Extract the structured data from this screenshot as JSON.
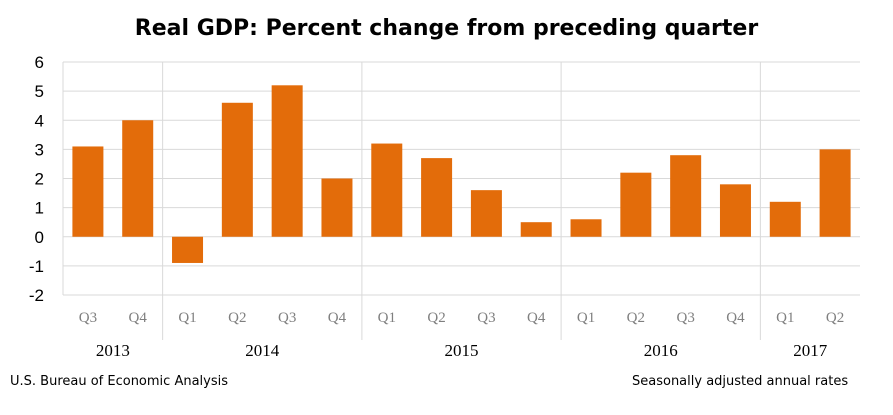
{
  "title": "Real GDP:  Percent change from preceding quarter",
  "footer": {
    "source": "U.S. Bureau of Economic Analysis",
    "note": "Seasonally adjusted annual rates"
  },
  "colors": {
    "bar": "#e36c0a",
    "grid": "#d9d9d9"
  },
  "chart_data": {
    "type": "bar",
    "categories": [
      "Q3",
      "Q4",
      "Q1",
      "Q2",
      "Q3",
      "Q4",
      "Q1",
      "Q2",
      "Q3",
      "Q4",
      "Q1",
      "Q2",
      "Q3",
      "Q4",
      "Q1",
      "Q2"
    ],
    "values": [
      3.1,
      4.0,
      -0.9,
      4.6,
      5.2,
      2.0,
      3.2,
      2.7,
      1.6,
      0.5,
      0.6,
      2.2,
      2.8,
      1.8,
      1.2,
      3.0
    ],
    "year_groups": [
      {
        "label": "2013",
        "count": 2
      },
      {
        "label": "2014",
        "count": 4
      },
      {
        "label": "2015",
        "count": 4
      },
      {
        "label": "2016",
        "count": 4
      },
      {
        "label": "2017",
        "count": 2
      }
    ],
    "ylim": [
      -2,
      6
    ],
    "yticks": [
      6,
      5,
      4,
      3,
      2,
      1,
      0,
      -1,
      -2
    ],
    "grid": true,
    "xlabel": "",
    "ylabel": ""
  }
}
